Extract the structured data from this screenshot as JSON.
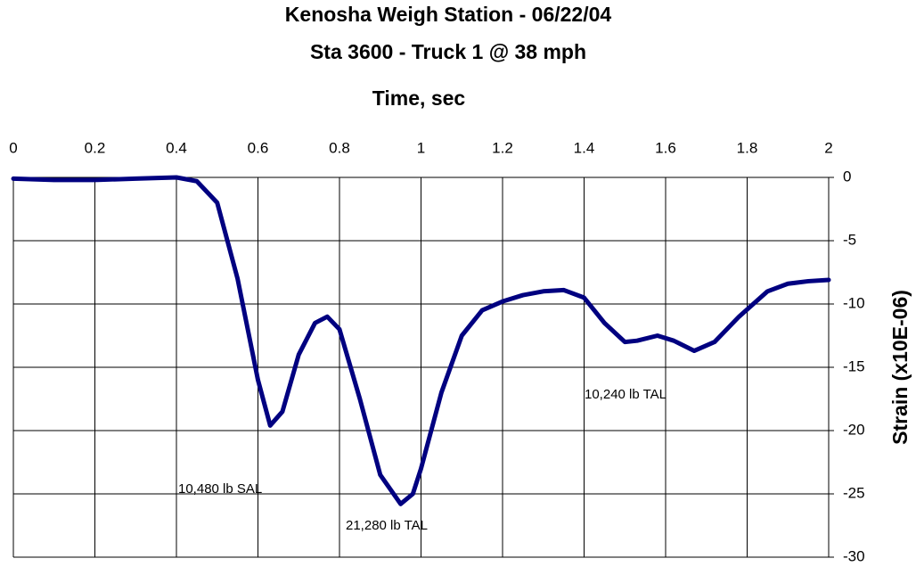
{
  "chart_data": {
    "type": "line",
    "title": "Kenosha Weigh Station - 06/22/04",
    "subtitle": "Sta 3600 - Truck 1 @ 38 mph",
    "x_label": "Time, sec",
    "y_label": "Strain (x10E-06)",
    "annotations": [
      "10,480 lb  SAL",
      "21,280 lb TAL",
      "10,240 lb TAL"
    ],
    "xlim": [
      0,
      2
    ],
    "xticks": [
      0,
      0.2,
      0.4,
      0.6,
      0.8,
      1,
      1.2,
      1.4,
      1.6,
      1.8,
      2
    ],
    "ylim": [
      -30,
      0
    ],
    "yticks": [
      0,
      -5,
      -10,
      -15,
      -20,
      -25,
      -30
    ],
    "grid": true,
    "series": [
      {
        "color": "#000080",
        "x": [
          0,
          0.1,
          0.2,
          0.3,
          0.4,
          0.45,
          0.5,
          0.55,
          0.6,
          0.63,
          0.66,
          0.7,
          0.74,
          0.77,
          0.8,
          0.85,
          0.9,
          0.95,
          0.98,
          1.0,
          1.05,
          1.1,
          1.15,
          1.2,
          1.25,
          1.3,
          1.35,
          1.4,
          1.45,
          1.5,
          1.53,
          1.58,
          1.62,
          1.67,
          1.72,
          1.78,
          1.85,
          1.9,
          1.95,
          2.0
        ],
        "values": [
          -0.1,
          -0.2,
          -0.2,
          -0.1,
          0,
          -0.3,
          -2,
          -8,
          -16,
          -19.6,
          -18.5,
          -14,
          -11.5,
          -11,
          -12,
          -17.5,
          -23.5,
          -25.8,
          -25,
          -23,
          -17,
          -12.5,
          -10.5,
          -9.8,
          -9.3,
          -9,
          -8.9,
          -9.5,
          -11.5,
          -13,
          -12.9,
          -12.5,
          -12.9,
          -13.7,
          -13,
          -11,
          -9,
          -8.4,
          -8.2,
          -8.1
        ]
      }
    ]
  }
}
